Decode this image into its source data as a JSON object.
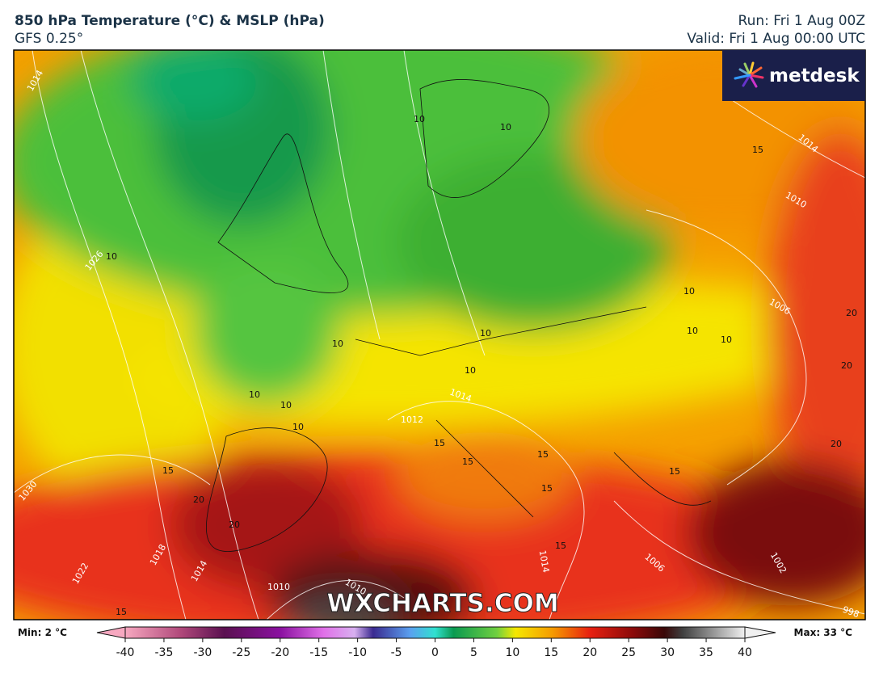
{
  "header": {
    "title": "850 hPa Temperature (°C) & MSLP (hPa)",
    "model": "GFS 0.25°",
    "run": "Run: Fri 1 Aug 00Z",
    "valid": "Valid: Fri 1 Aug 00:00 UTC"
  },
  "logo": "metdesk",
  "watermark": "WXCHARTS.COM",
  "legend": {
    "min": "Min: 2 °C",
    "max": "Max: 33 °C",
    "ticks": [
      -40,
      -35,
      -30,
      -25,
      -20,
      -15,
      -10,
      -5,
      0,
      5,
      10,
      15,
      20,
      25,
      30,
      35,
      40
    ],
    "range": [
      -40,
      40
    ]
  },
  "isotherm_labels": [
    10,
    10,
    10,
    10,
    10,
    10,
    10,
    10,
    10,
    10,
    10,
    10,
    15,
    15,
    15,
    15,
    15,
    15,
    15,
    15,
    15,
    20,
    20,
    20,
    20,
    20
  ],
  "isobar_labels": [
    1014,
    1014,
    1014,
    1014,
    1014,
    1010,
    1010,
    1010,
    1026,
    1006,
    1006,
    1018,
    1022,
    1030,
    1002,
    998,
    1012
  ]
}
